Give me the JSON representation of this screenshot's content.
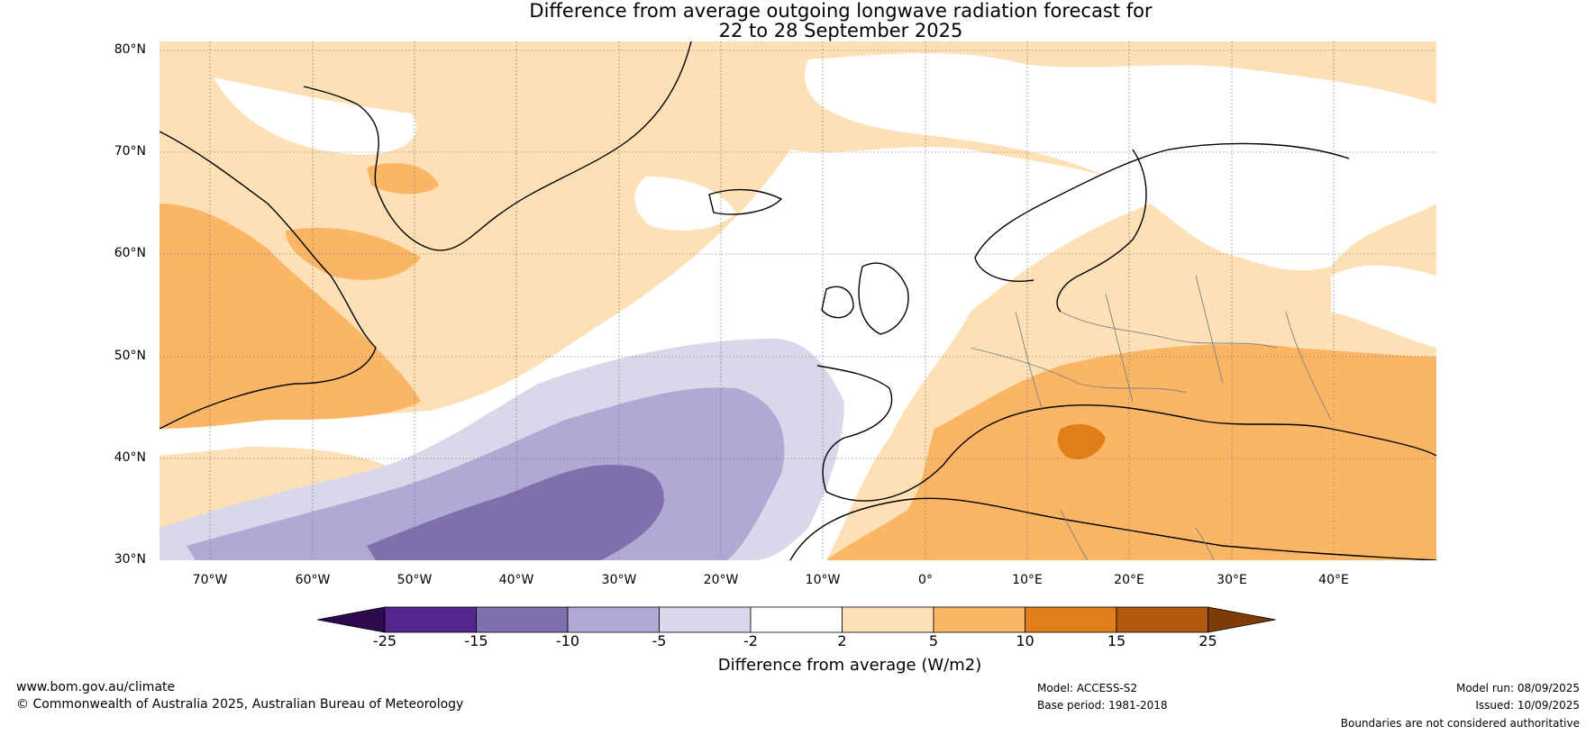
{
  "title": {
    "line1": "Difference from average outgoing longwave radiation forecast for",
    "line2": "22 to 28 September 2025"
  },
  "map": {
    "lat_labels": [
      "80°N",
      "70°N",
      "60°N",
      "50°N",
      "40°N",
      "30°N"
    ],
    "lon_labels": [
      "70°W",
      "60°W",
      "50°W",
      "40°W",
      "30°W",
      "20°W",
      "10°W",
      "0°",
      "10°E",
      "20°E",
      "30°E",
      "40°E"
    ]
  },
  "colorbar": {
    "ticks": [
      "-25",
      "-15",
      "-10",
      "-5",
      "-2",
      "2",
      "5",
      "10",
      "15",
      "25"
    ],
    "colors": [
      "#2d0a4e",
      "#54278f",
      "#7d70ad",
      "#b0a9d3",
      "#d8d8ea",
      "#ffffff",
      "#fde0b5",
      "#fbb665",
      "#e07e1a",
      "#b3580f",
      "#7f3b08"
    ],
    "label": "Difference from average (W/m2)"
  },
  "footer": {
    "website": "www.bom.gov.au/climate",
    "copyright": "© Commonwealth of Australia 2025, Australian Bureau of Meteorology",
    "model": "Model: ACCESS-S2",
    "base_period": "Base period: 1981-2018",
    "model_run": "Model run: 08/09/2025",
    "issued": "Issued: 10/09/2025",
    "disclaimer": "Boundaries are not considered authoritative"
  }
}
